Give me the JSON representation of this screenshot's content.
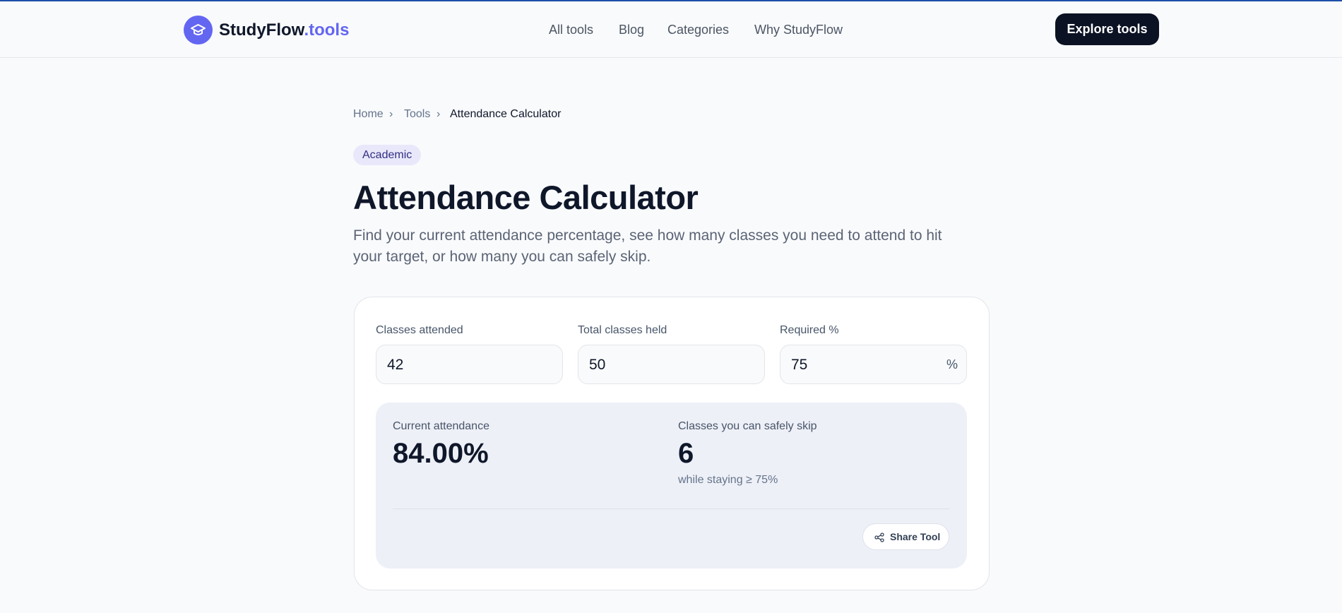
{
  "header": {
    "brand": "StudyFlow",
    "brand_suffix": ".tools",
    "nav": [
      "All tools",
      "Blog",
      "Categories",
      "Why StudyFlow"
    ],
    "cta": "Explore tools"
  },
  "breadcrumb": [
    "Home",
    "Tools",
    "Attendance Calculator"
  ],
  "badge": "Academic",
  "title": "Attendance Calculator",
  "description": [
    "Find your current attendance percentage, see how many classes you need to attend to hit",
    "your target, or how many you can safely skip."
  ],
  "form": {
    "fields": [
      {
        "label": "Classes attended",
        "value": "42"
      },
      {
        "label": "Total classes held",
        "value": "50"
      },
      {
        "label": "Required %",
        "value": "75",
        "suffix": "%"
      }
    ]
  },
  "results": [
    {
      "label": "Current attendance",
      "value": "84.00%"
    },
    {
      "label": "Classes you can safely skip",
      "value": "6",
      "note": "while staying ≥ 75%"
    }
  ],
  "share": "Share Tool"
}
